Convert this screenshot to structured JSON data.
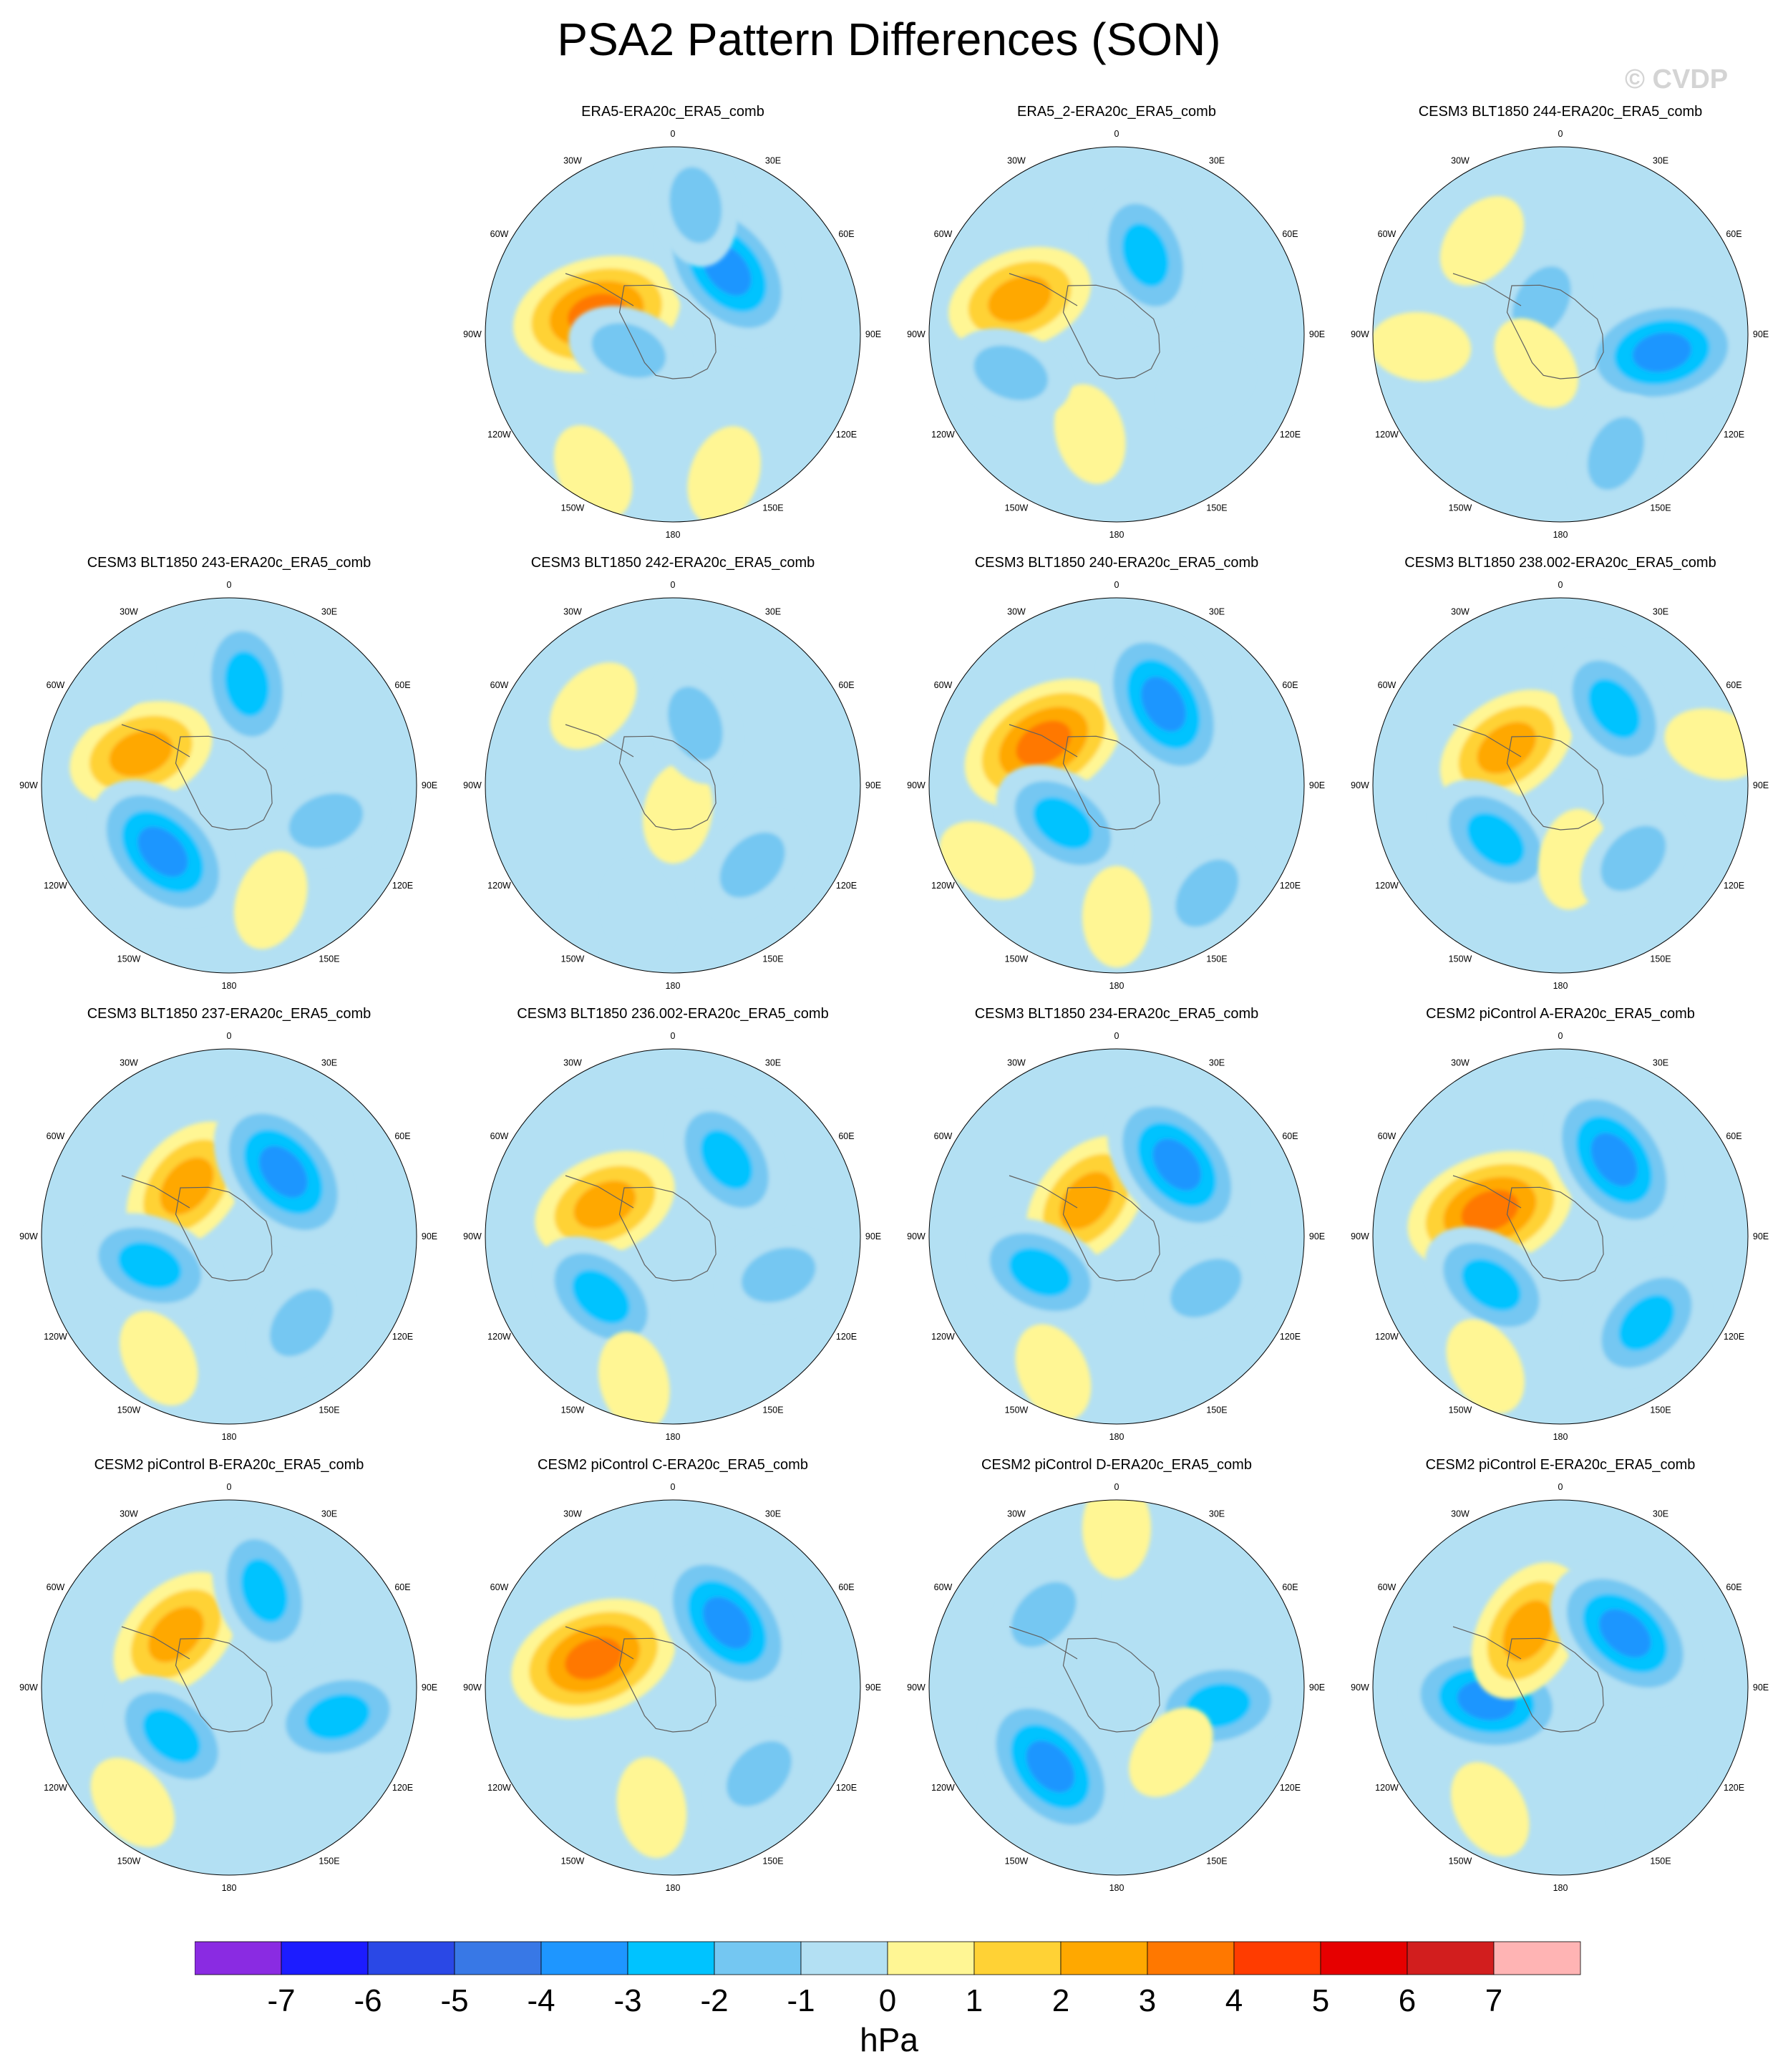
{
  "title": "PSA2 Pattern Differences (SON)",
  "watermark": "© CVDP",
  "longitude_labels": [
    "0",
    "30E",
    "60E",
    "90E",
    "120E",
    "150E",
    "180",
    "150W",
    "120W",
    "90W",
    "60W",
    "30W"
  ],
  "colorbar": {
    "unit": "hPa",
    "tick_labels": [
      "-7",
      "-6",
      "-5",
      "-4",
      "-3",
      "-2",
      "-1",
      "0",
      "1",
      "2",
      "3",
      "4",
      "5",
      "6",
      "7"
    ],
    "colors": [
      "#8a2be2",
      "#1c1cff",
      "#2a48e6",
      "#3878e6",
      "#1e96ff",
      "#00c3ff",
      "#74c7f2",
      "#b3e0f3",
      "#fff694",
      "#ffd235",
      "#ffa800",
      "#ff7800",
      "#ff3c00",
      "#e60000",
      "#d21e1e",
      "#ffb4b4"
    ]
  },
  "chart_data": {
    "type": "polar map panels",
    "variable_unit": "hPa",
    "contour_levels": [
      -7,
      -6,
      -5,
      -4,
      -3,
      -2,
      -1,
      0,
      1,
      2,
      3,
      4,
      5,
      6,
      7
    ],
    "panels": [
      {
        "title": "ERA5-ERA20c_ERA5_comb",
        "anomalies": [
          {
            "lon": -105,
            "r": 0.42,
            "v": 4
          },
          {
            "lon": 140,
            "r": 0.45,
            "v": -4
          },
          {
            "lon": 170,
            "r": 0.7,
            "v": -2
          },
          {
            "lon": -70,
            "r": 0.25,
            "v": -2
          },
          {
            "lon": 20,
            "r": 0.8,
            "v": 1
          },
          {
            "lon": -30,
            "r": 0.85,
            "v": 1
          }
        ]
      },
      {
        "title": "ERA5_2-ERA20c_ERA5_comb",
        "anomalies": [
          {
            "lon": -110,
            "r": 0.55,
            "v": 3
          },
          {
            "lon": -15,
            "r": 0.55,
            "v": 1
          },
          {
            "lon": 160,
            "r": 0.45,
            "v": -3
          },
          {
            "lon": -70,
            "r": 0.6,
            "v": -2
          },
          {
            "lon": 60,
            "r": 0.55,
            "v": -1
          }
        ]
      },
      {
        "title": "CESM3 BLT1850 244-ERA20c_ERA5_comb",
        "anomalies": [
          {
            "lon": 80,
            "r": 0.55,
            "v": -4
          },
          {
            "lon": 25,
            "r": 0.7,
            "v": -2
          },
          {
            "lon": -150,
            "r": 0.2,
            "v": -2
          },
          {
            "lon": -85,
            "r": 0.75,
            "v": 1
          },
          {
            "lon": -140,
            "r": 0.65,
            "v": 1
          },
          {
            "lon": -40,
            "r": 0.2,
            "v": 1
          }
        ]
      },
      {
        "title": "CESM3 BLT1850 243-ERA20c_ERA5_comb",
        "anomalies": [
          {
            "lon": -110,
            "r": 0.5,
            "v": 3
          },
          {
            "lon": -45,
            "r": 0.5,
            "v": -4
          },
          {
            "lon": 170,
            "r": 0.55,
            "v": -3
          },
          {
            "lon": 70,
            "r": 0.55,
            "v": -2
          },
          {
            "lon": -130,
            "r": 0.85,
            "v": -1
          },
          {
            "lon": 20,
            "r": 0.65,
            "v": 1
          }
        ]
      },
      {
        "title": "CESM3 BLT1850 242-ERA20c_ERA5_comb",
        "anomalies": [
          {
            "lon": 10,
            "r": 0.15,
            "v": 1
          },
          {
            "lon": -135,
            "r": 0.6,
            "v": 1
          },
          {
            "lon": 160,
            "r": 0.35,
            "v": -2
          },
          {
            "lon": 45,
            "r": 0.6,
            "v": -2
          },
          {
            "lon": -15,
            "r": 0.7,
            "v": -1
          }
        ]
      },
      {
        "title": "CESM3 BLT1850 240-ERA20c_ERA5_comb",
        "anomalies": [
          {
            "lon": -120,
            "r": 0.45,
            "v": 4
          },
          {
            "lon": 150,
            "r": 0.5,
            "v": -4
          },
          {
            "lon": -55,
            "r": 0.35,
            "v": -3
          },
          {
            "lon": -60,
            "r": 0.8,
            "v": 1
          },
          {
            "lon": 40,
            "r": 0.75,
            "v": -2
          },
          {
            "lon": 0,
            "r": 0.7,
            "v": 1
          }
        ]
      },
      {
        "title": "CESM3 BLT1850 238.002-ERA20c_ERA5_comb",
        "anomalies": [
          {
            "lon": -125,
            "r": 0.35,
            "v": 3
          },
          {
            "lon": 145,
            "r": 0.5,
            "v": -3
          },
          {
            "lon": -50,
            "r": 0.45,
            "v": -3
          },
          {
            "lon": 10,
            "r": 0.4,
            "v": 1
          },
          {
            "lon": 45,
            "r": 0.55,
            "v": -2
          },
          {
            "lon": 105,
            "r": 0.85,
            "v": 1
          }
        ]
      },
      {
        "title": "CESM3 BLT1850 237-ERA20c_ERA5_comb",
        "anomalies": [
          {
            "lon": -140,
            "r": 0.35,
            "v": 3
          },
          {
            "lon": 140,
            "r": 0.45,
            "v": -4
          },
          {
            "lon": -70,
            "r": 0.45,
            "v": -3
          },
          {
            "lon": -30,
            "r": 0.75,
            "v": 1
          },
          {
            "lon": 40,
            "r": 0.6,
            "v": -2
          }
        ]
      },
      {
        "title": "CESM3 BLT1850 236.002-ERA20c_ERA5_comb",
        "anomalies": [
          {
            "lon": -115,
            "r": 0.4,
            "v": 3
          },
          {
            "lon": 145,
            "r": 0.5,
            "v": -3
          },
          {
            "lon": -50,
            "r": 0.5,
            "v": -3
          },
          {
            "lon": -15,
            "r": 0.8,
            "v": 1
          },
          {
            "lon": 70,
            "r": 0.6,
            "v": -2
          }
        ]
      },
      {
        "title": "CESM3 BLT1850 234-ERA20c_ERA5_comb",
        "anomalies": [
          {
            "lon": -140,
            "r": 0.25,
            "v": 3
          },
          {
            "lon": 140,
            "r": 0.5,
            "v": -4
          },
          {
            "lon": -65,
            "r": 0.45,
            "v": -3
          },
          {
            "lon": -25,
            "r": 0.8,
            "v": 1
          },
          {
            "lon": 60,
            "r": 0.55,
            "v": -2
          }
        ]
      },
      {
        "title": "CESM2 piControl A-ERA20c_ERA5_comb",
        "anomalies": [
          {
            "lon": -110,
            "r": 0.4,
            "v": 4
          },
          {
            "lon": 145,
            "r": 0.5,
            "v": -4
          },
          {
            "lon": -55,
            "r": 0.45,
            "v": -3
          },
          {
            "lon": -30,
            "r": 0.8,
            "v": 1
          },
          {
            "lon": 45,
            "r": 0.65,
            "v": -3
          }
        ]
      },
      {
        "title": "CESM2 piControl B-ERA20c_ERA5_comb",
        "anomalies": [
          {
            "lon": -135,
            "r": 0.4,
            "v": 3
          },
          {
            "lon": 160,
            "r": 0.55,
            "v": -3
          },
          {
            "lon": -50,
            "r": 0.4,
            "v": -3
          },
          {
            "lon": -40,
            "r": 0.8,
            "v": 1
          },
          {
            "lon": 75,
            "r": 0.6,
            "v": -3
          }
        ]
      },
      {
        "title": "CESM2 piControl C-ERA20c_ERA5_comb",
        "anomalies": [
          {
            "lon": -110,
            "r": 0.45,
            "v": 4
          },
          {
            "lon": 140,
            "r": 0.45,
            "v": -4
          },
          {
            "lon": -10,
            "r": 0.65,
            "v": 1
          },
          {
            "lon": 45,
            "r": 0.65,
            "v": -2
          }
        ]
      },
      {
        "title": "CESM2 piControl D-ERA20c_ERA5_comb",
        "anomalies": [
          {
            "lon": -40,
            "r": 0.55,
            "v": -4
          },
          {
            "lon": 80,
            "r": 0.55,
            "v": -3
          },
          {
            "lon": -135,
            "r": 0.55,
            "v": -2
          },
          {
            "lon": 40,
            "r": 0.45,
            "v": 1
          },
          {
            "lon": 180,
            "r": 0.85,
            "v": 1
          }
        ]
      },
      {
        "title": "CESM2 piControl E-ERA20c_ERA5_comb",
        "anomalies": [
          {
            "lon": -80,
            "r": 0.4,
            "v": -4
          },
          {
            "lon": -150,
            "r": 0.35,
            "v": 3
          },
          {
            "lon": 130,
            "r": 0.45,
            "v": -4
          },
          {
            "lon": -30,
            "r": 0.75,
            "v": 1
          },
          {
            "lon": 40,
            "r": 0.75,
            "v": -1
          }
        ]
      }
    ]
  }
}
